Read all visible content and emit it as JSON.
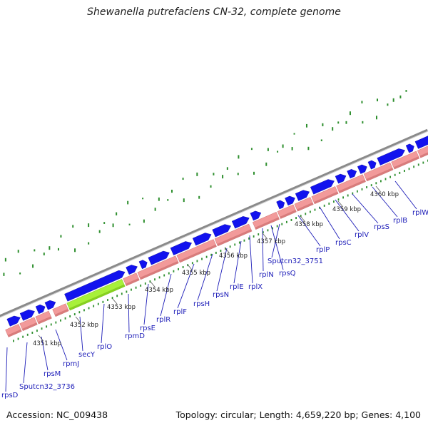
{
  "title": "Shewanella putrefaciens CN-32, complete genome",
  "footer": {
    "accession": "Accession: NC_009438",
    "summary": "Topology: circular; Length: 4,659,220 bp; Genes: 4,100"
  },
  "colors": {
    "forward_gene": "#1212ee",
    "reverse_gene": "#f29a9a",
    "highlight_gene": "#a8f03a",
    "backbone": "#8a8a8a",
    "ticks": "#2e8f2e",
    "label": "#1c1cb8"
  },
  "kbp_ticks": [
    "4351 kbp",
    "4352 kbp",
    "4353 kbp",
    "4354 kbp",
    "4355 kbp",
    "4356 kbp",
    "4357 kbp",
    "4358 kbp",
    "4359 kbp",
    "4360 kbp"
  ],
  "gene_labels": [
    "rpsD",
    "Sputcn32_3736",
    "rpsM",
    "rpmJ",
    "secY",
    "rplO",
    "rpmD",
    "rpsE",
    "rplR",
    "rplF",
    "rpsH",
    "rpsN",
    "rplE",
    "rplX",
    "rplN",
    "rpsQ",
    "Sputcn32_3751",
    "rplP",
    "rpsC",
    "rplV",
    "rpsS",
    "rplB",
    "rplW"
  ]
}
